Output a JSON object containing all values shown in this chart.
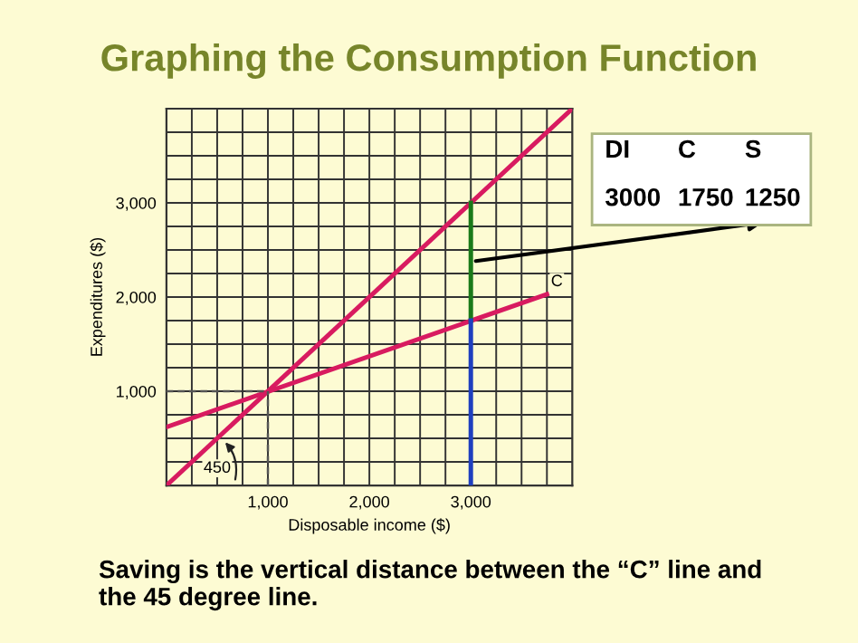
{
  "chart_data": {
    "type": "line",
    "title": "Graphing the Consumption Function",
    "xlabel": "Disposable income ($)",
    "ylabel": "Expenditures ($)",
    "xlim": [
      0,
      4000
    ],
    "ylim": [
      0,
      4000
    ],
    "xticks": [
      {
        "value": 250,
        "label": null
      },
      {
        "value": 500,
        "label": null
      },
      {
        "value": 750,
        "label": null
      },
      {
        "value": 1000,
        "label": "1,000"
      },
      {
        "value": 1250,
        "label": null
      },
      {
        "value": 1500,
        "label": null
      },
      {
        "value": 1750,
        "label": null
      },
      {
        "value": 2000,
        "label": "2,000"
      },
      {
        "value": 2250,
        "label": null
      },
      {
        "value": 2500,
        "label": null
      },
      {
        "value": 2750,
        "label": null
      },
      {
        "value": 3000,
        "label": "3,000"
      },
      {
        "value": 3250,
        "label": null
      },
      {
        "value": 3500,
        "label": null
      },
      {
        "value": 3750,
        "label": null
      }
    ],
    "yticks": [
      {
        "value": 250,
        "label": null
      },
      {
        "value": 500,
        "label": null
      },
      {
        "value": 750,
        "label": null
      },
      {
        "value": 1000,
        "label": "1,000"
      },
      {
        "value": 1250,
        "label": null
      },
      {
        "value": 1500,
        "label": null
      },
      {
        "value": 1750,
        "label": null
      },
      {
        "value": 2000,
        "label": "2,000"
      },
      {
        "value": 2250,
        "label": null
      },
      {
        "value": 2500,
        "label": null
      },
      {
        "value": 2750,
        "label": null
      },
      {
        "value": 3000,
        "label": "3,000"
      },
      {
        "value": 3250,
        "label": null
      },
      {
        "value": 3500,
        "label": null
      },
      {
        "value": 3750,
        "label": null
      }
    ],
    "grid": true,
    "series": [
      {
        "color": "#d81b60",
        "x": [
          0,
          4000
        ],
        "values": [
          0,
          4000
        ]
      },
      {
        "color": "#d81b60",
        "x": [
          0,
          3750
        ],
        "values": [
          620,
          2030
        ]
      },
      {
        "color": "#1a7a1a",
        "x": [
          3000,
          3000
        ],
        "values": [
          1750,
          3000
        ]
      },
      {
        "color": "#1f3fbf",
        "x": [
          3000,
          3000
        ],
        "values": [
          0,
          1750
        ]
      },
      {
        "color": "#555555",
        "line_style": "dashed",
        "x": [
          0,
          1000
        ],
        "values": [
          1000,
          1000
        ]
      },
      {
        "color": "#555555",
        "line_style": "dashed",
        "x": [
          1000,
          1000
        ],
        "values": [
          0,
          1000
        ]
      }
    ],
    "annotations": [
      "450",
      "C",
      "DI",
      "C",
      "S",
      "3000",
      "1750",
      "1250",
      "Saving is the vertical distance between the “C” line and the 45 degree line."
    ]
  }
}
